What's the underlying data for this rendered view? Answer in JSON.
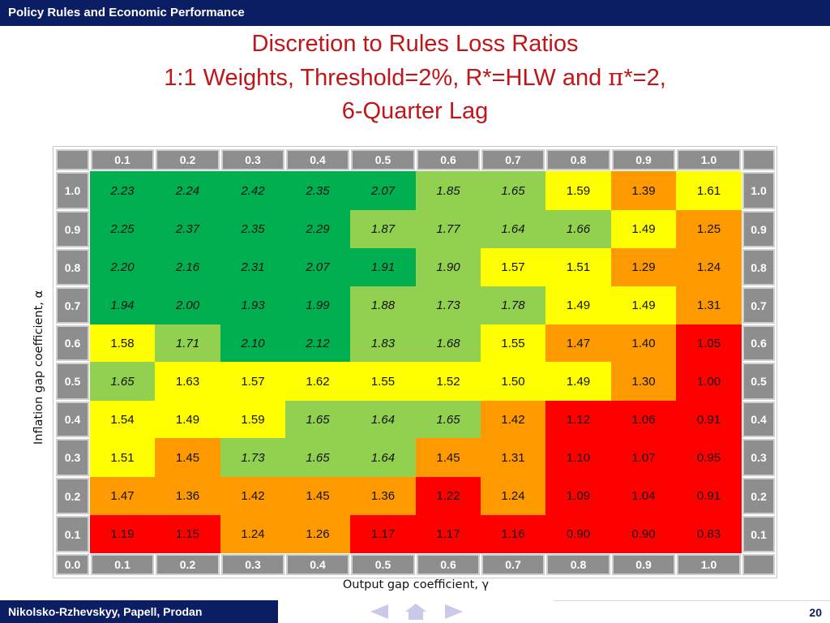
{
  "header": {
    "title": "Policy Rules and Economic Performance"
  },
  "slide": {
    "title_line1": "Discretion to Rules Loss Ratios",
    "title_line2_a": "1:1 Weights, Threshold=2%, R*=HLW and ",
    "title_line2_pi": "π",
    "title_line2_b": "*=2,",
    "title_line3": "6-Quarter Lag"
  },
  "colors": {
    "dark_green": "#00b050",
    "light_green": "#92d050",
    "yellow": "#ffff00",
    "orange": "#ff9900",
    "red": "#ff0000",
    "header_gray": "#8e8e8e",
    "header_border": "#cfcfcf",
    "title_red": "#c0161a",
    "navy": "#0b1e63",
    "nav_arrow": "#c9c9e9"
  },
  "chart_data": {
    "type": "heatmap",
    "title": "Discretion to Rules Loss Ratios",
    "xlabel": "Output gap coefficient, γ",
    "ylabel": "Inflation gap coefficient, α",
    "x": [
      "0.1",
      "0.2",
      "0.3",
      "0.4",
      "0.5",
      "0.6",
      "0.7",
      "0.8",
      "0.9",
      "1.0"
    ],
    "y": [
      "1.0",
      "0.9",
      "0.8",
      "0.7",
      "0.6",
      "0.5",
      "0.4",
      "0.3",
      "0.2",
      "0.1"
    ],
    "bottom_left_label": "0.0",
    "values": [
      [
        "2.23",
        "2.24",
        "2.42",
        "2.35",
        "2.07",
        "1.85",
        "1.65",
        "1.59",
        "1.39",
        "1.61"
      ],
      [
        "2.25",
        "2.37",
        "2.35",
        "2.29",
        "1.87",
        "1.77",
        "1.64",
        "1.66",
        "1.49",
        "1.25"
      ],
      [
        "2.20",
        "2.16",
        "2.31",
        "2.07",
        "1.91",
        "1.90",
        "1.57",
        "1.51",
        "1.29",
        "1.24"
      ],
      [
        "1.94",
        "2.00",
        "1.93",
        "1.99",
        "1.88",
        "1.73",
        "1.78",
        "1.49",
        "1.49",
        "1.31"
      ],
      [
        "1.58",
        "1.71",
        "2.10",
        "2.12",
        "1.83",
        "1.68",
        "1.55",
        "1.47",
        "1.40",
        "1.05"
      ],
      [
        "1.65",
        "1.63",
        "1.57",
        "1.62",
        "1.55",
        "1.52",
        "1.50",
        "1.49",
        "1.30",
        "1.00"
      ],
      [
        "1.54",
        "1.49",
        "1.59",
        "1.65",
        "1.64",
        "1.65",
        "1.42",
        "1.12",
        "1.06",
        "0.91"
      ],
      [
        "1.51",
        "1.45",
        "1.73",
        "1.65",
        "1.64",
        "1.45",
        "1.31",
        "1.10",
        "1.07",
        "0.95"
      ],
      [
        "1.47",
        "1.36",
        "1.42",
        "1.45",
        "1.36",
        "1.22",
        "1.24",
        "1.09",
        "1.04",
        "0.91"
      ],
      [
        "1.19",
        "1.15",
        "1.24",
        "1.26",
        "1.17",
        "1.17",
        "1.16",
        "0.90",
        "0.90",
        "0.83"
      ]
    ],
    "colors": [
      [
        "G",
        "G",
        "G",
        "G",
        "G",
        "L",
        "L",
        "Y",
        "O",
        "Y"
      ],
      [
        "G",
        "G",
        "G",
        "G",
        "L",
        "L",
        "L",
        "L",
        "Y",
        "O"
      ],
      [
        "G",
        "G",
        "G",
        "G",
        "G",
        "L",
        "Y",
        "Y",
        "O",
        "O"
      ],
      [
        "G",
        "G",
        "G",
        "G",
        "L",
        "L",
        "L",
        "Y",
        "Y",
        "O"
      ],
      [
        "Y",
        "L",
        "G",
        "G",
        "L",
        "L",
        "Y",
        "O",
        "O",
        "R"
      ],
      [
        "L",
        "Y",
        "Y",
        "Y",
        "Y",
        "Y",
        "Y",
        "Y",
        "O",
        "R"
      ],
      [
        "Y",
        "Y",
        "Y",
        "L",
        "L",
        "L",
        "O",
        "R",
        "R",
        "R"
      ],
      [
        "Y",
        "O",
        "L",
        "L",
        "L",
        "O",
        "O",
        "R",
        "R",
        "R"
      ],
      [
        "O",
        "O",
        "O",
        "O",
        "O",
        "R",
        "O",
        "R",
        "R",
        "R"
      ],
      [
        "R",
        "R",
        "O",
        "O",
        "R",
        "R",
        "R",
        "R",
        "R",
        "R"
      ]
    ],
    "italic": [
      [
        1,
        1,
        1,
        1,
        1,
        1,
        1,
        0,
        0,
        0
      ],
      [
        1,
        1,
        1,
        1,
        1,
        1,
        1,
        1,
        0,
        0
      ],
      [
        1,
        1,
        1,
        1,
        1,
        1,
        0,
        0,
        0,
        0
      ],
      [
        1,
        1,
        1,
        1,
        1,
        1,
        1,
        0,
        0,
        0
      ],
      [
        0,
        1,
        1,
        1,
        1,
        1,
        0,
        0,
        0,
        0
      ],
      [
        1,
        0,
        0,
        0,
        0,
        0,
        0,
        0,
        0,
        0
      ],
      [
        0,
        0,
        0,
        1,
        1,
        1,
        0,
        0,
        0,
        0
      ],
      [
        0,
        0,
        1,
        1,
        1,
        0,
        0,
        0,
        0,
        0
      ],
      [
        0,
        0,
        0,
        0,
        0,
        0,
        0,
        0,
        0,
        0
      ],
      [
        0,
        0,
        0,
        0,
        0,
        0,
        0,
        0,
        0,
        0
      ]
    ]
  },
  "footer": {
    "authors": "Nikolsko-Rzhevskyy, Papell, Prodan",
    "page_number": "20",
    "nav_icons": [
      "previous-slide-icon",
      "home-icon",
      "next-slide-icon"
    ]
  }
}
